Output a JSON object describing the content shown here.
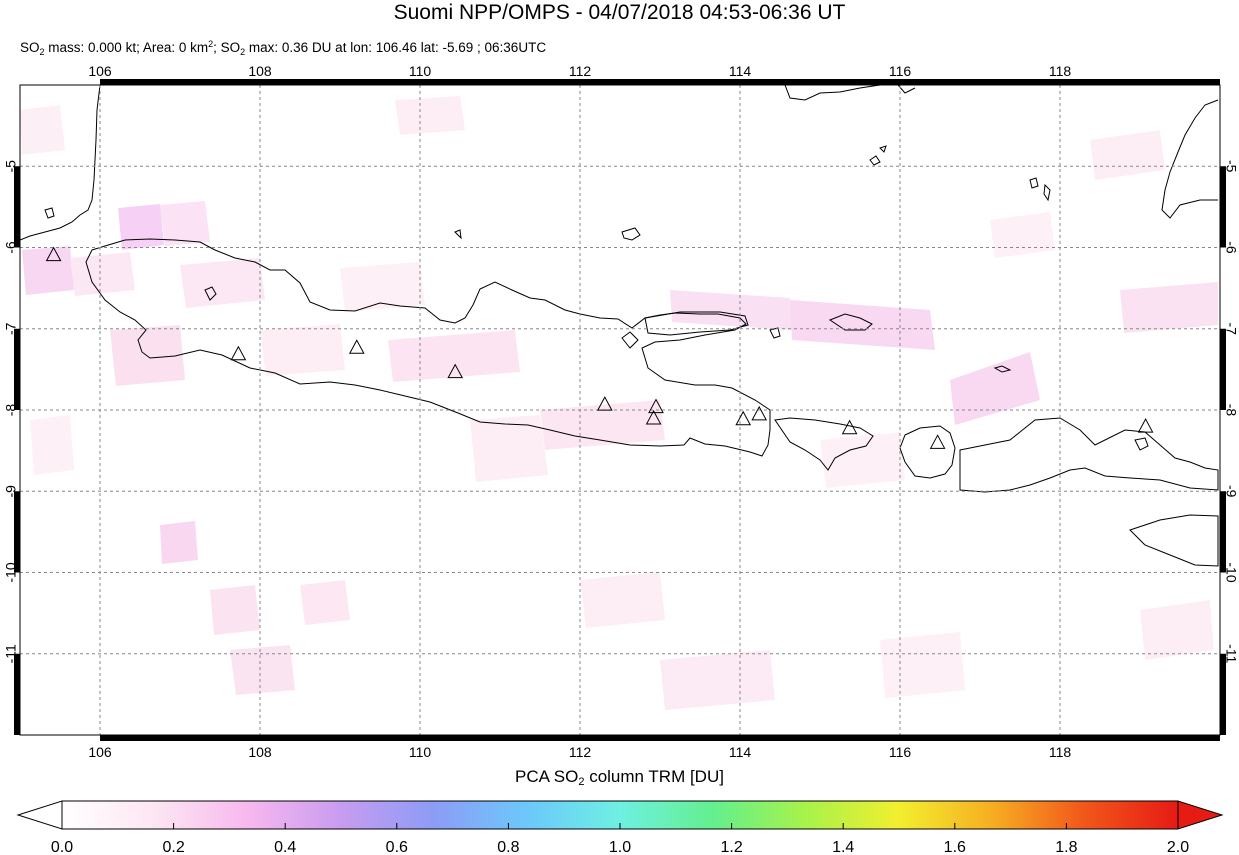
{
  "header": {
    "title": "Suomi NPP/OMPS - 04/07/2018 04:53-06:36 UT",
    "stats": {
      "mass_label": "SO",
      "mass_sub": "2",
      "mass_text": " mass: 0.000 kt; Area: 0 km",
      "area_sup": "2",
      "max_text": "; SO",
      "max_sub": "2",
      "max_rest": " max: 0.36 DU at lon: 106.46 lat: -5.69 ; 06:36UTC"
    }
  },
  "map": {
    "lon_ticks": [
      "106",
      "108",
      "110",
      "112",
      "114",
      "116",
      "118"
    ],
    "lat_ticks": [
      "-5",
      "-6",
      "-7",
      "-8",
      "-9",
      "-10",
      "-11"
    ],
    "lon_range": [
      105.0,
      120.0
    ],
    "lat_range": [
      -12.0,
      -4.0
    ],
    "grid": "dashed",
    "volcanoes": [
      {
        "lon": 105.42,
        "lat": -6.1
      },
      {
        "lon": 107.73,
        "lat": -7.32
      },
      {
        "lon": 109.21,
        "lat": -7.24
      },
      {
        "lon": 110.44,
        "lat": -7.54
      },
      {
        "lon": 112.31,
        "lat": -7.94
      },
      {
        "lon": 112.95,
        "lat": -7.97
      },
      {
        "lon": 112.92,
        "lat": -8.11
      },
      {
        "lon": 114.04,
        "lat": -8.12
      },
      {
        "lon": 114.24,
        "lat": -8.06
      },
      {
        "lon": 115.37,
        "lat": -8.23
      },
      {
        "lon": 116.47,
        "lat": -8.41
      },
      {
        "lon": 119.07,
        "lat": -8.21
      }
    ]
  },
  "colorbar": {
    "label_pre": "PCA SO",
    "label_sub": "2",
    "label_post": " column TRM [DU]",
    "ticks": [
      "0.0",
      "0.2",
      "0.4",
      "0.6",
      "0.8",
      "1.0",
      "1.2",
      "1.4",
      "1.6",
      "1.8",
      "2.0"
    ],
    "range": [
      0.0,
      2.0
    ],
    "colors": [
      "#ffffff",
      "#fde6f3",
      "#f7b8ee",
      "#c79cf0",
      "#8c9cf6",
      "#6cc8fb",
      "#6ef0e2",
      "#63ef8e",
      "#a8f24a",
      "#f2ef2e",
      "#f6ae22",
      "#f2561a",
      "#e51b14"
    ]
  }
}
